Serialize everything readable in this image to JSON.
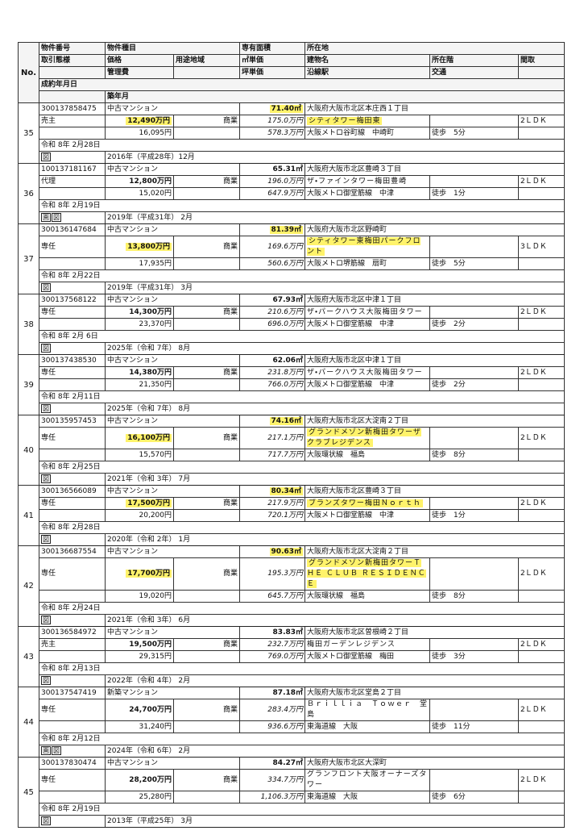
{
  "header": {
    "no": "No.",
    "property_id": "物件番号",
    "property_type": "物件種目",
    "area": "専有面積",
    "address": "所在地",
    "transaction": "取引態様",
    "price": "価格",
    "zoning": "用途地域",
    "unit_price": "㎡単価",
    "building": "建物名",
    "floor": "所在階",
    "layout": "間取",
    "mgmt_fee": "管理費",
    "tsubo_price": "坪単価",
    "station": "沿線駅",
    "access": "交通",
    "contract_date": "成約年月日",
    "built": "築年月"
  },
  "table": {
    "rows": [
      {
        "no": 35,
        "id": "300137858475",
        "type": "中古マンション",
        "area": "71.40㎡",
        "address": "大阪府大阪市北区本庄西１丁目",
        "transaction": "売主",
        "price": "12,490万円",
        "zoning": "商業",
        "unit_price": "175.0万円",
        "building": "シティタワー梅田東",
        "layout": "2ＬＤＫ",
        "mgmt_fee": "16,095円",
        "tsubo_price": "578.3万円",
        "station": "大阪メトロ谷町線　中崎町",
        "access": "徒歩　5分",
        "contract_date": "令和 8年 2月28日",
        "built": "2016年（平成28年）12月",
        "icons": [
          "図"
        ],
        "highlight": true
      },
      {
        "no": 36,
        "id": "100137181167",
        "type": "中古マンション",
        "area": "65.31㎡",
        "address": "大阪府大阪市北区豊崎３丁目",
        "transaction": "代理",
        "price": "12,800万円",
        "zoning": "商業",
        "unit_price": "196.0万円",
        "building": "ザ・ファインタワー梅田豊崎",
        "layout": "2ＬＤＫ",
        "mgmt_fee": "15,020円",
        "tsubo_price": "647.9万円",
        "station": "大阪メトロ御堂筋線　中津",
        "access": "徒歩　1分",
        "contract_date": "令和 8年 2月19日",
        "built": "2019年（平成31年） 2月",
        "icons": [
          "画",
          "図"
        ]
      },
      {
        "no": 37,
        "id": "300136147684",
        "type": "中古マンション",
        "area": "81.39㎡",
        "address": "大阪府大阪市北区野崎町",
        "transaction": "専任",
        "price": "13,800万円",
        "zoning": "商業",
        "unit_price": "169.6万円",
        "building": "シティタワー東梅田パークフロント",
        "layout": "3ＬＤＫ",
        "mgmt_fee": "17,935円",
        "tsubo_price": "560.6万円",
        "station": "大阪メトロ堺筋線　扇町",
        "access": "徒歩　5分",
        "contract_date": "令和 8年 2月22日",
        "built": "2019年（平成31年） 3月",
        "icons": [
          "図"
        ],
        "highlight": true
      },
      {
        "no": 38,
        "id": "300137568122",
        "type": "中古マンション",
        "area": "67.93㎡",
        "address": "大阪府大阪市北区中津１丁目",
        "transaction": "専任",
        "price": "14,300万円",
        "zoning": "商業",
        "unit_price": "210.6万円",
        "building": "ザ・パークハウス大阪梅田タワー",
        "layout": "2ＬＤＫ",
        "mgmt_fee": "23,370円",
        "tsubo_price": "696.0万円",
        "station": "大阪メトロ御堂筋線　中津",
        "access": "徒歩　2分",
        "contract_date": "令和 8年 2月 6日",
        "built": "2025年（令和 7年） 8月",
        "icons": [
          "図"
        ]
      },
      {
        "no": 39,
        "id": "300137438530",
        "type": "中古マンション",
        "area": "62.06㎡",
        "address": "大阪府大阪市北区中津１丁目",
        "transaction": "専任",
        "price": "14,380万円",
        "zoning": "商業",
        "unit_price": "231.8万円",
        "building": "ザ・パークハウス大阪梅田タワー",
        "layout": "2ＬＤＫ",
        "mgmt_fee": "21,350円",
        "tsubo_price": "766.0万円",
        "station": "大阪メトロ御堂筋線　中津",
        "access": "徒歩　2分",
        "contract_date": "令和 8年 2月11日",
        "built": "2025年（令和 7年） 8月",
        "icons": [
          "図"
        ]
      },
      {
        "no": 40,
        "id": "300135957453",
        "type": "中古マンション",
        "area": "74.16㎡",
        "address": "大阪府大阪市北区大淀南２丁目",
        "transaction": "専任",
        "price": "16,100万円",
        "zoning": "商業",
        "unit_price": "217.1万円",
        "building": "グランドメゾン新梅田タワーザクラブレジデンス",
        "layout": "2ＬＤＫ",
        "mgmt_fee": "15,570円",
        "tsubo_price": "717.7万円",
        "station": "大阪環状線　福島",
        "access": "徒歩　8分",
        "contract_date": "令和 8年 2月25日",
        "built": "2021年（令和 3年） 7月",
        "icons": [
          "図"
        ],
        "highlight": true
      },
      {
        "no": 41,
        "id": "300136566089",
        "type": "中古マンション",
        "area": "80.34㎡",
        "address": "大阪府大阪市北区豊崎３丁目",
        "transaction": "専任",
        "price": "17,500万円",
        "zoning": "商業",
        "unit_price": "217.9万円",
        "building": "ブランズタワー梅田Ｎｏｒｔｈ",
        "layout": "2ＬＤＫ",
        "mgmt_fee": "20,200円",
        "tsubo_price": "720.1万円",
        "station": "大阪メトロ御堂筋線　中津",
        "access": "徒歩　1分",
        "contract_date": "令和 8年 2月28日",
        "built": "2020年（令和 2年） 1月",
        "icons": [
          "図"
        ],
        "highlight": true
      },
      {
        "no": 42,
        "id": "300136687554",
        "type": "中古マンション",
        "area": "90.63㎡",
        "address": "大阪府大阪市北区大淀南２丁目",
        "transaction": "専任",
        "price": "17,700万円",
        "zoning": "商業",
        "unit_price": "195.3万円",
        "building": "グランドメゾン新梅田タワーＴＨＥ ＣＬＵＢ ＲＥＳＩＤＥＮＣＥ",
        "layout": "2ＬＤＫ",
        "mgmt_fee": "19,020円",
        "tsubo_price": "645.7万円",
        "station": "大阪環状線　福島",
        "access": "徒歩　8分",
        "contract_date": "令和 8年 2月24日",
        "built": "2021年（令和 3年） 6月",
        "icons": [
          "図"
        ],
        "highlight": true
      },
      {
        "no": 43,
        "id": "300136584972",
        "type": "中古マンション",
        "area": "83.83㎡",
        "address": "大阪府大阪市北区曽根崎２丁目",
        "transaction": "売主",
        "price": "19,500万円",
        "zoning": "商業",
        "unit_price": "232.7万円",
        "building": "梅田ガーデンレジデンス",
        "layout": "2ＬＤＫ",
        "mgmt_fee": "29,315円",
        "tsubo_price": "769.0万円",
        "station": "大阪メトロ御堂筋線　梅田",
        "access": "徒歩　3分",
        "contract_date": "令和 8年 2月13日",
        "built": "2022年（令和 4年） 2月",
        "icons": [
          "図"
        ]
      },
      {
        "no": 44,
        "id": "300137547419",
        "type": "新築マンション",
        "area": "87.18㎡",
        "address": "大阪府大阪市北区堂島２丁目",
        "transaction": "専任",
        "price": "24,700万円",
        "zoning": "商業",
        "unit_price": "283.4万円",
        "building": "Ｂｒｉｌｌｉａ　Ｔｏｗｅｒ　堂島",
        "layout": "2ＬＤＫ",
        "mgmt_fee": "31,240円",
        "tsubo_price": "936.6万円",
        "station": "東海道線　大阪",
        "access": "徒歩　11分",
        "contract_date": "令和 8年 2月12日",
        "built": "2024年（令和 6年） 2月",
        "icons": [
          "画",
          "図"
        ]
      },
      {
        "no": 45,
        "id": "300137830474",
        "type": "中古マンション",
        "area": "84.27㎡",
        "address": "大阪府大阪市北区大深町",
        "transaction": "専任",
        "price": "28,200万円",
        "zoning": "商業",
        "unit_price": "334.7万円",
        "building": "グランフロント大阪オーナーズタワー",
        "layout": "2ＬＤＫ",
        "mgmt_fee": "25,280円",
        "tsubo_price": "1,106.3万円",
        "station": "東海道線　大阪",
        "access": "徒歩　6分",
        "contract_date": "令和 8年 2月19日",
        "built": "2013年（平成25年） 3月",
        "icons": [
          "図"
        ]
      }
    ]
  }
}
